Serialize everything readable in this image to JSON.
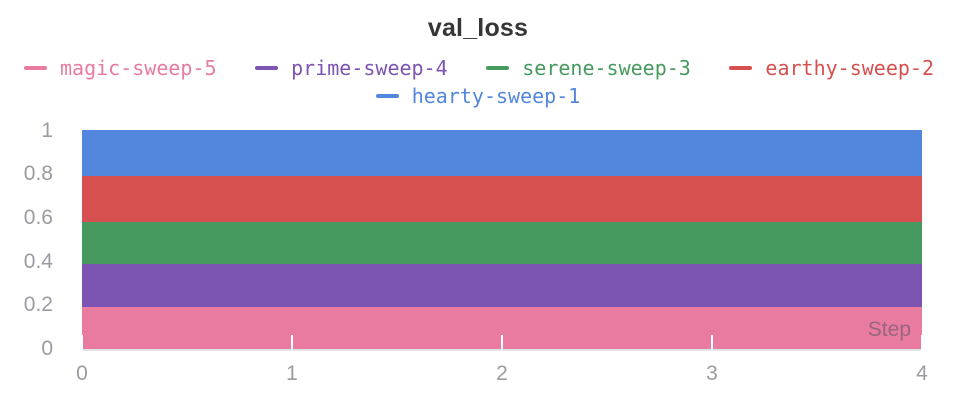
{
  "title": "val_loss",
  "axes": {
    "x_label": "Step",
    "x_ticks": [
      "0",
      "1",
      "2",
      "3",
      "4"
    ],
    "y_ticks_top_down": [
      "1",
      "0.8",
      "0.6",
      "0.4",
      "0.2",
      "0"
    ]
  },
  "legend": {
    "row1": [
      "magic-sweep-5",
      "prime-sweep-4",
      "serene-sweep-3",
      "earthy-sweep-2"
    ],
    "row2": [
      "hearty-sweep-1"
    ]
  },
  "chart_data": {
    "type": "area",
    "stacked": true,
    "title": "val_loss",
    "xlabel": "Step",
    "ylabel": "",
    "x": [
      0,
      1,
      2,
      3,
      4
    ],
    "xlim": [
      0,
      4
    ],
    "ylim": [
      0,
      1
    ],
    "grid": false,
    "legend_position": "top",
    "series": [
      {
        "name": "magic-sweep-5",
        "color": "#E87B9F",
        "values": [
          0.19,
          0.19,
          0.19,
          0.19,
          0.19
        ],
        "band": [
          0.0,
          0.19
        ]
      },
      {
        "name": "prime-sweep-4",
        "color": "#7D54B2",
        "values": [
          0.2,
          0.2,
          0.2,
          0.2,
          0.2
        ],
        "band": [
          0.19,
          0.39
        ]
      },
      {
        "name": "serene-sweep-3",
        "color": "#479A5F",
        "values": [
          0.19,
          0.19,
          0.19,
          0.19,
          0.19
        ],
        "band": [
          0.39,
          0.58
        ]
      },
      {
        "name": "earthy-sweep-2",
        "color": "#D5504E",
        "values": [
          0.21,
          0.21,
          0.21,
          0.21,
          0.21
        ],
        "band": [
          0.58,
          0.79
        ]
      },
      {
        "name": "hearty-sweep-1",
        "color": "#5387DD",
        "values": [
          0.21,
          0.21,
          0.21,
          0.21,
          0.21
        ],
        "band": [
          0.79,
          1.0
        ]
      }
    ]
  }
}
